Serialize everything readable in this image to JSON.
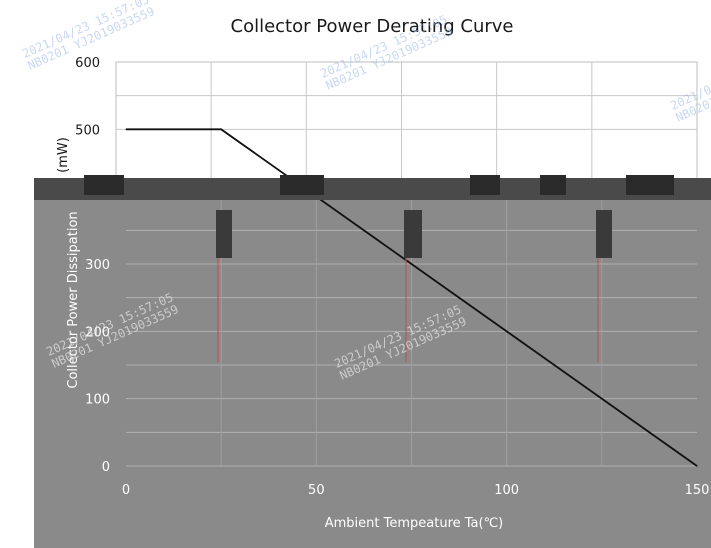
{
  "chart_data": {
    "type": "line",
    "title": "Collector Power Derating Curve",
    "xlabel": "Ambient Tempeature Ta(℃)",
    "ylabel": "Collector Power Dissipation",
    "ylabel_unit": "(mW)",
    "xlim": [
      0,
      150
    ],
    "ylim": [
      0,
      600
    ],
    "x_ticks": [
      "0",
      "50",
      "100",
      "150"
    ],
    "y_ticks": [
      "0",
      "100",
      "200",
      "300",
      "500",
      "600"
    ],
    "grid": true,
    "series": [
      {
        "x": [
          0,
          25,
          150
        ],
        "y": [
          500,
          500,
          0
        ]
      }
    ],
    "colors": {
      "line": "#111111",
      "grid": "#c8c8c8",
      "lower_background": "#8a8a8a"
    }
  },
  "watermarks": [
    "2021/04/23 15:57:05",
    "NB0201 YJ2019033559"
  ]
}
